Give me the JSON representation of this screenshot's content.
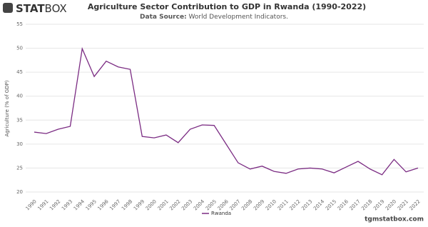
{
  "brand": {
    "bold": "STAT",
    "light": "BOX"
  },
  "footer": "tgmstatbox.com",
  "chart_data": {
    "type": "line",
    "title": "Agriculture Sector Contribution to GDP in Rwanda (1990-2022)",
    "subtitle_label": "Data Source:",
    "subtitle": "World Development Indicators.",
    "y_label": "Agriculture (% of GDP)",
    "categories": [
      "1990",
      "1991",
      "1992",
      "1993",
      "1994",
      "1995",
      "1996",
      "1997",
      "1998",
      "1999",
      "2000",
      "2001",
      "2002",
      "2003",
      "2004",
      "2005",
      "2006",
      "2007",
      "2008",
      "2009",
      "2010",
      "2011",
      "2012",
      "2013",
      "2014",
      "2015",
      "2016",
      "2017",
      "2018",
      "2019",
      "2020",
      "2021",
      "2022"
    ],
    "series": [
      {
        "name": "Rwanda",
        "color": "#7b2c83",
        "values": [
          32.5,
          32.2,
          33.1,
          33.7,
          49.9,
          44.1,
          47.3,
          46.1,
          45.6,
          31.6,
          31.3,
          31.9,
          30.3,
          33.1,
          34.0,
          33.9,
          30.0,
          26.1,
          24.8,
          25.4,
          24.3,
          23.9,
          24.8,
          25.0,
          24.8,
          24.0,
          25.2,
          26.4,
          24.8,
          23.6,
          26.8,
          24.2,
          25.0
        ]
      }
    ],
    "ylim": [
      20,
      55
    ],
    "yticks": [
      20,
      25,
      30,
      35,
      40,
      45,
      50,
      55
    ],
    "grid": true,
    "legend": "bottom"
  }
}
